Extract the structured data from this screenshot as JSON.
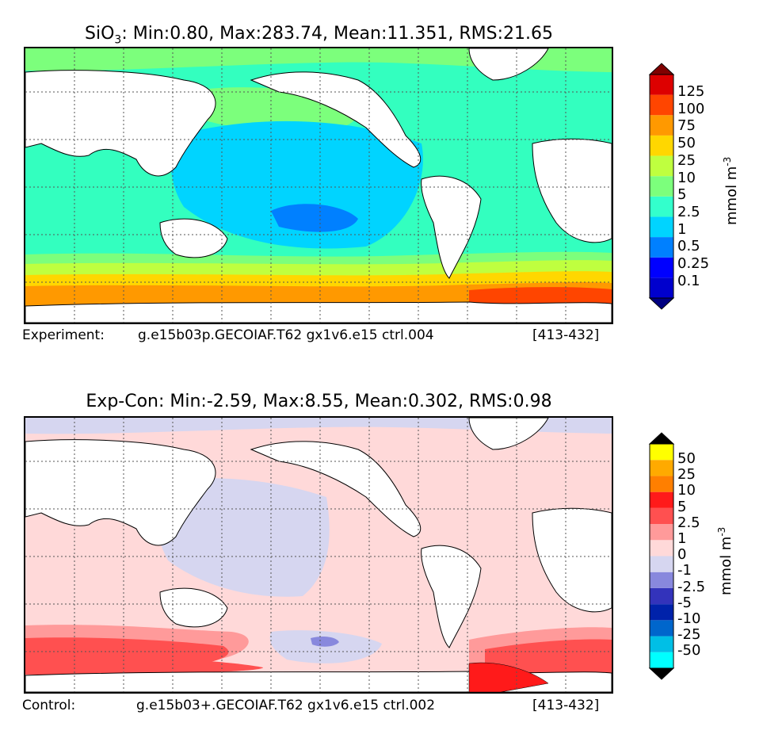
{
  "top": {
    "title_var": "SiO",
    "title_sub": "3",
    "title_stats": ": Min:0.80, Max:283.74, Mean:11.351, RMS:21.65",
    "footer_label": "Experiment:",
    "footer_case": "g.e15b03p.GECOIAF.T62 gx1v6.e15 ctrl.004",
    "footer_years": "[413-432]",
    "colorbar": {
      "ticks": [
        "125",
        "100",
        "75",
        "50",
        "25",
        "10",
        "5",
        "2.5",
        "1",
        "0.5",
        "0.25",
        "0.1"
      ],
      "colors": [
        "#000080",
        "#0000cd",
        "#0000ff",
        "#0080ff",
        "#00d4ff",
        "#33ffcc",
        "#7cff7c",
        "#bfff3f",
        "#ffd700",
        "#ff9900",
        "#ff4500",
        "#dd0000",
        "#800000"
      ],
      "label_unit": "mmol m",
      "label_exp": "-3"
    }
  },
  "bottom": {
    "title": "Exp-Con: Min:-2.59, Max:8.55, Mean:0.302, RMS:0.98",
    "footer_label": "Control:",
    "footer_case": "g.e15b03+.GECOIAF.T62 gx1v6.e15 ctrl.002",
    "footer_years": "[413-432]",
    "colorbar": {
      "ticks": [
        "50",
        "25",
        "10",
        "5",
        "2.5",
        "1",
        "0",
        "-1",
        "-2.5",
        "-5",
        "-10",
        "-25",
        "-50"
      ],
      "colors": [
        "#000000",
        "#00ffff",
        "#00bfe6",
        "#0066cc",
        "#0022aa",
        "#3333bb",
        "#8888dd",
        "#d6d6f0",
        "#ffd9d9",
        "#ff9a9a",
        "#ff5050",
        "#ff1a1a",
        "#ff7f00",
        "#ffaa00",
        "#ffff00",
        "#000000"
      ],
      "label_unit": "mmol m",
      "label_exp": "-3"
    }
  }
}
